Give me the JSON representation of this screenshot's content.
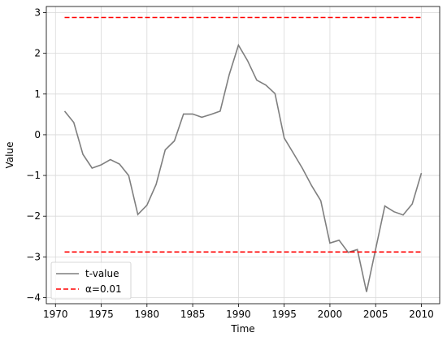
{
  "chart_data": {
    "type": "line",
    "title": "",
    "xlabel": "Time",
    "ylabel": "Value",
    "xlim": [
      1969.0,
      2012.0
    ],
    "ylim": [
      -4.15,
      3.15
    ],
    "xticks": [
      1970,
      1975,
      1980,
      1985,
      1990,
      1995,
      2000,
      2005,
      2010
    ],
    "yticks": [
      -4,
      -3,
      -2,
      -1,
      0,
      1,
      2,
      3
    ],
    "grid": true,
    "legend_position": "lower-left",
    "series": [
      {
        "name": "t-value",
        "style": "solid",
        "color": "#7f7f7f",
        "x": [
          1971,
          1972,
          1973,
          1974,
          1975,
          1976,
          1977,
          1978,
          1979,
          1980,
          1981,
          1982,
          1983,
          1984,
          1985,
          1986,
          1987,
          1988,
          1989,
          1990,
          1991,
          1992,
          1993,
          1994,
          1995,
          1996,
          1997,
          1998,
          1999,
          2000,
          2001,
          2002,
          2003,
          2004,
          2005,
          2006,
          2007,
          2008,
          2009,
          2010
        ],
        "y": [
          0.58,
          0.3,
          -0.48,
          -0.82,
          -0.74,
          -0.61,
          -0.72,
          -1.0,
          -1.96,
          -1.73,
          -1.22,
          -0.37,
          -0.15,
          0.51,
          0.51,
          0.43,
          0.5,
          0.58,
          1.48,
          2.2,
          1.82,
          1.34,
          1.22,
          1.01,
          -0.08,
          -0.45,
          -0.83,
          -1.25,
          -1.62,
          -2.66,
          -2.59,
          -2.89,
          -2.82,
          -3.86,
          -2.81,
          -1.75,
          -1.89,
          -1.97,
          -1.7,
          -0.94
        ]
      },
      {
        "name": "α=0.01",
        "style": "dashed",
        "color": "#ff0000",
        "x": [
          1971,
          2010
        ],
        "y": [
          2.88,
          2.88
        ]
      },
      {
        "name": "",
        "style": "dashed",
        "color": "#ff0000",
        "x": [
          1971,
          2010
        ],
        "y": [
          -2.88,
          -2.88
        ]
      }
    ],
    "legend": [
      {
        "label": "t-value",
        "style": "solid",
        "color": "#7f7f7f"
      },
      {
        "label": "α=0.01",
        "style": "dashed",
        "color": "#ff0000"
      }
    ]
  }
}
